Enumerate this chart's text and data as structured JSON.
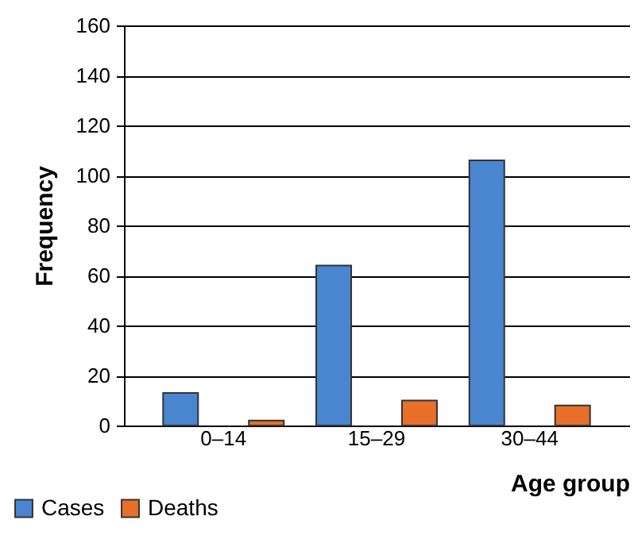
{
  "chart_data": {
    "type": "bar",
    "xlabel": "Age group",
    "ylabel": "Frequency",
    "categories": [
      "0–14",
      "15–29",
      "30–44"
    ],
    "series": [
      {
        "name": "Cases",
        "color": "#4a86cf",
        "values": [
          13,
          64,
          106
        ]
      },
      {
        "name": "Deaths",
        "color": "#e8702a",
        "values": [
          2,
          10,
          8
        ]
      }
    ],
    "ylim": [
      0,
      160
    ],
    "yticks": [
      0,
      20,
      40,
      60,
      80,
      100,
      120,
      140,
      160
    ],
    "grid": "y",
    "legend": "bottom left"
  }
}
